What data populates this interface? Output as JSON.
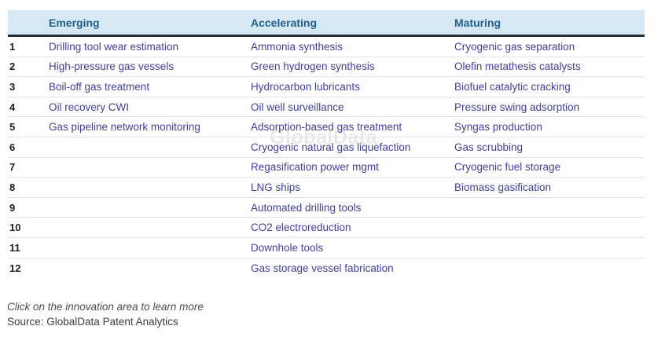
{
  "watermark": "GlobalData",
  "table": {
    "headers": [
      "Emerging",
      "Accelerating",
      "Maturing"
    ],
    "rows": [
      {
        "num": "1",
        "emerging": "Drilling tool wear estimation",
        "accelerating": "Ammonia synthesis",
        "maturing": "Cryogenic gas separation"
      },
      {
        "num": "2",
        "emerging": "High-pressure gas vessels",
        "accelerating": "Green hydrogen synthesis",
        "maturing": "Olefin metathesis catalysts"
      },
      {
        "num": "3",
        "emerging": "Boil-off gas treatment",
        "accelerating": "Hydrocarbon lubricants",
        "maturing": "Biofuel catalytic cracking"
      },
      {
        "num": "4",
        "emerging": "Oil recovery CWI",
        "accelerating": "Oil well surveillance",
        "maturing": "Pressure swing adsorption"
      },
      {
        "num": "5",
        "emerging": "Gas pipeline network monitoring",
        "accelerating": "Adsorption-based gas treatment",
        "maturing": "Syngas production"
      },
      {
        "num": "6",
        "emerging": "",
        "accelerating": "Cryogenic natural gas liquefaction",
        "maturing": "Gas scrubbing"
      },
      {
        "num": "7",
        "emerging": "",
        "accelerating": "Regasification power mgmt",
        "maturing": "Cryogenic fuel storage"
      },
      {
        "num": "8",
        "emerging": "",
        "accelerating": "LNG ships",
        "maturing": "Biomass gasification"
      },
      {
        "num": "9",
        "emerging": "",
        "accelerating": "Automated drilling tools",
        "maturing": ""
      },
      {
        "num": "10",
        "emerging": "",
        "accelerating": "CO2 electroreduction",
        "maturing": ""
      },
      {
        "num": "11",
        "emerging": "",
        "accelerating": "Downhole tools",
        "maturing": ""
      },
      {
        "num": "12",
        "emerging": "",
        "accelerating": "Gas storage vessel fabrication",
        "maturing": ""
      }
    ]
  },
  "footer": {
    "note": "Click on the innovation area to learn more",
    "source": "Source: GlobalData Patent Analytics"
  },
  "colors": {
    "header_bg": "#d7e8f5",
    "header_text": "#20608f",
    "header_rule": "#252d39",
    "link_text": "#40409c",
    "number_text": "#1b1b29",
    "row_divider": "#e2e2e6",
    "footer_note": "#4c4c4c",
    "footer_source": "#3d3d3d",
    "watermark": "#e9e9e9"
  }
}
